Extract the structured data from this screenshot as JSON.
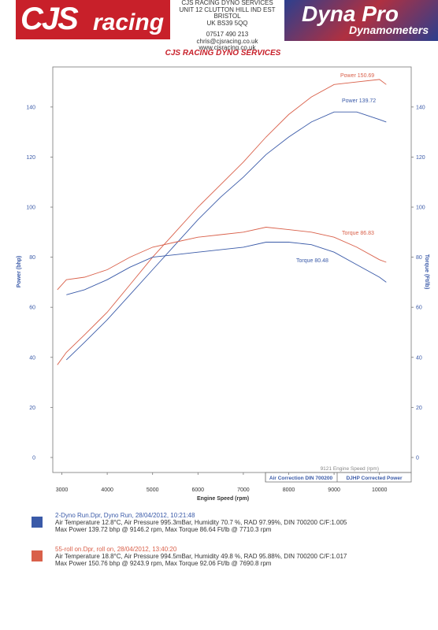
{
  "header": {
    "left_logo": [
      "CJS",
      "racing"
    ],
    "address": [
      "CJS RACING DYNO SERVICES",
      "UNIT 12 CLUTTON HILL IND EST",
      "BRISTOL",
      "UK BS39 5QQ",
      "07517 490 213",
      "chris@cjsracing.co.uk",
      "www.cjsracing.co.uk"
    ],
    "right_logo": [
      "Dyna Pro",
      "Dynamometers"
    ]
  },
  "chart_data": {
    "type": "line",
    "title": "CJS RACING DYNO SERVICES",
    "xlabel": "Engine Speed (rpm)",
    "ylabel": "Power (bhp)",
    "y2label": "Torque (Ft/lb)",
    "x": [
      2900,
      3100,
      3500,
      4000,
      4500,
      5000,
      5500,
      6000,
      6500,
      7000,
      7500,
      8000,
      8500,
      9000,
      9500,
      10000,
      10150
    ],
    "series": [
      {
        "name": "Power",
        "color": "#d9604a",
        "values": [
          37,
          42,
          49,
          58,
          69,
          80,
          90,
          100,
          109,
          118,
          128,
          137,
          144,
          149,
          150,
          151,
          149
        ]
      },
      {
        "name": "Power",
        "color": "#3a5aa8",
        "values": [
          null,
          39,
          46,
          55,
          65,
          75,
          85,
          95,
          104,
          112,
          121,
          128,
          134,
          138,
          138,
          135,
          134
        ]
      },
      {
        "name": "Torque",
        "color": "#d9604a",
        "values": [
          67,
          71,
          72,
          75,
          80,
          84,
          86,
          88,
          89,
          90,
          92,
          91,
          90,
          88,
          84,
          79,
          78
        ]
      },
      {
        "name": "Torque",
        "color": "#3a5aa8",
        "values": [
          null,
          65,
          67,
          71,
          76,
          80,
          81,
          82,
          83,
          84,
          86,
          86,
          85,
          82,
          77,
          72,
          70
        ]
      }
    ],
    "annotations": [
      "Power 150.69",
      "Power 139.72",
      "Torque 86.83",
      "Torque 80.48"
    ],
    "footer_notes": [
      "9121 Engine Speed (rpm)",
      "Air Correction DIN 700200",
      "DJHP Corrected Power"
    ],
    "xlim": [
      2800,
      10700
    ],
    "xticks": [
      3000,
      4000,
      5000,
      6000,
      7000,
      8000,
      9000,
      10000
    ],
    "ylim": [
      -6,
      156
    ],
    "yticks": [
      0,
      20,
      40,
      60,
      80,
      100,
      120,
      140
    ],
    "y2lim": [
      -6,
      156
    ],
    "y2ticks": [
      0,
      20,
      40,
      60,
      80,
      100,
      120,
      140
    ],
    "grid": false
  },
  "runs": [
    {
      "color": "#3a5aa8",
      "lines": [
        "2-Dyno Run.Dpr,   Dyno Run,   28/04/2012,   10:21:48",
        "Air Temperature 12.8°C, Air Pressure 995.3mBar, Humidity 70.7 %, RAD 97.99%,   DIN 700200   C/F:1.005",
        "Max Power 139.72 bhp @ 9146.2 rpm, Max Torque 86.64 Ft/lb @ 7710.3 rpm"
      ]
    },
    {
      "color": "#d9604a",
      "lines": [
        "55-roll on.Dpr,   roll on,   28/04/2012,   13:40:20",
        "Air Temperature 18.8°C, Air Pressure 994.5mBar, Humidity 49.8 %, RAD 95.88%,   DIN 700200   C/F:1.017",
        "Max Power 150.76 bhp @ 9243.9 rpm, Max Torque 92.06 Ft/lb @ 7690.8 rpm"
      ]
    }
  ]
}
